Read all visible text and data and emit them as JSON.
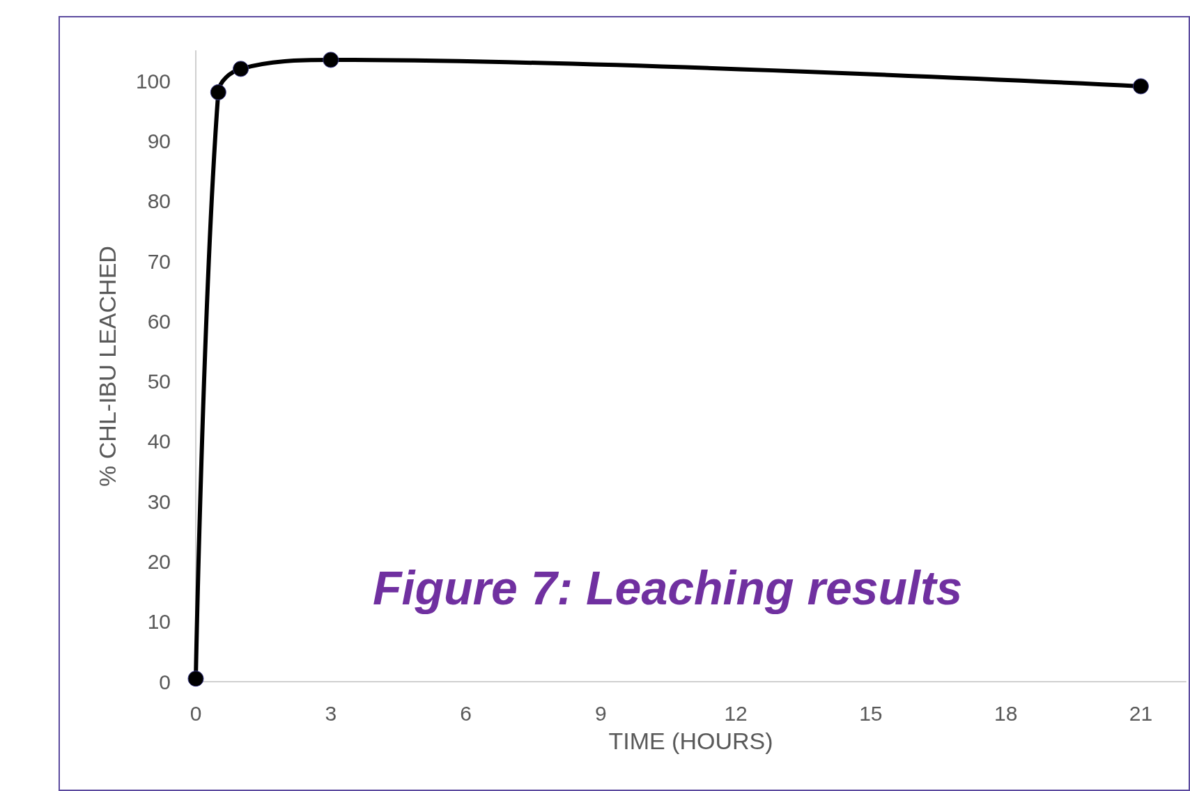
{
  "chart_data": {
    "type": "line",
    "xlabel": "TIME (HOURS)",
    "ylabel": "% CHL-IBU LEACHED",
    "annotations": [
      "Figure 7: Leaching results"
    ],
    "x": [
      0,
      0.5,
      1,
      3,
      21
    ],
    "series": [
      {
        "color": "#000000",
        "values": [
          0.5,
          98.1,
          102,
          103.5,
          99.1
        ]
      }
    ],
    "xlim": [
      0,
      22
    ],
    "xticks": [
      0,
      3,
      6,
      9,
      12,
      15,
      18,
      21
    ],
    "ylim": [
      0,
      105
    ],
    "yticks": [
      0,
      10,
      20,
      30,
      40,
      50,
      60,
      70,
      80,
      90,
      100
    ],
    "grid": false,
    "marker": "circle",
    "line_style": "solid"
  }
}
